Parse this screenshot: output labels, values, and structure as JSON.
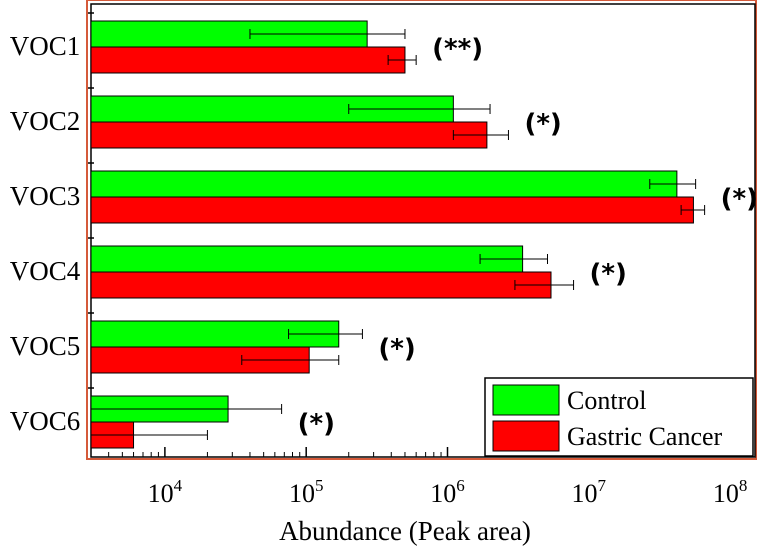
{
  "chart_data": {
    "type": "bar",
    "orientation": "horizontal",
    "xscale": "log",
    "xlabel": "Abundance (Peak area)",
    "xlim": [
      3000,
      150000000
    ],
    "xticks": [
      {
        "base": "10",
        "exp": "4",
        "value": 10000
      },
      {
        "base": "10",
        "exp": "5",
        "value": 100000
      },
      {
        "base": "10",
        "exp": "6",
        "value": 1000000
      },
      {
        "base": "10",
        "exp": "7",
        "value": 10000000
      },
      {
        "base": "10",
        "exp": "8",
        "value": 100000000
      }
    ],
    "categories": [
      "VOC1",
      "VOC2",
      "VOC3",
      "VOC4",
      "VOC5",
      "VOC6"
    ],
    "series": [
      {
        "name": "Control",
        "color": "#00FF00",
        "values": [
          270000,
          1100000,
          42000000,
          3400000,
          170000,
          28000
        ],
        "err_low": [
          40000,
          200000,
          27000000,
          1700000,
          75000,
          0
        ],
        "err_high": [
          500000,
          2000000,
          57000000,
          5100000,
          250000,
          67000
        ]
      },
      {
        "name": "Gastric Cancer",
        "color": "#FF0000",
        "values": [
          500000,
          1900000,
          55000000,
          5400000,
          105000,
          6000
        ],
        "err_low": [
          380000,
          1100000,
          45000000,
          3000000,
          35000,
          0
        ],
        "err_high": [
          600000,
          2700000,
          66000000,
          7800000,
          170000,
          20000
        ]
      }
    ],
    "significance": [
      "(**)",
      "(*)",
      "(*)",
      "(*)",
      "(*)",
      "(*)"
    ],
    "legend_position": "bottom-right",
    "grid": false
  }
}
